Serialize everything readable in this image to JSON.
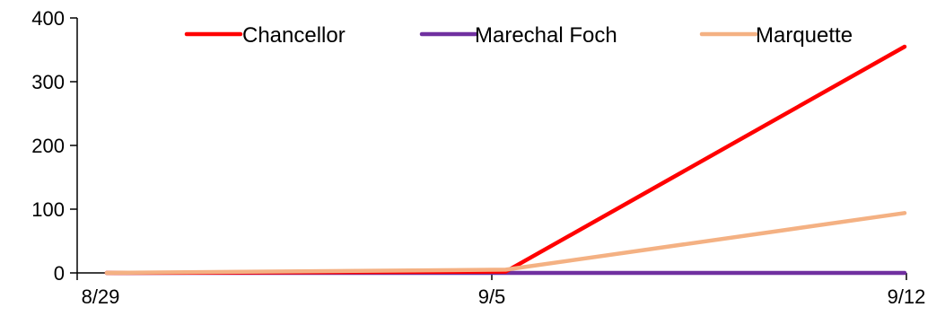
{
  "chart_data": {
    "type": "line",
    "x": [
      "8/29",
      "9/5",
      "9/12"
    ],
    "ylim": [
      0,
      400
    ],
    "yticks": [
      0,
      100,
      200,
      300,
      400
    ],
    "grid": false,
    "legend": "top",
    "series": [
      {
        "name": "Chancellor",
        "color": "#ff0000",
        "values": [
          0,
          2,
          355
        ]
      },
      {
        "name": "Marechal Foch",
        "color": "#7030a0",
        "values": [
          0,
          0,
          0
        ]
      },
      {
        "name": "Marquette",
        "color": "#f4b183",
        "values": [
          0,
          5,
          94
        ]
      }
    ]
  }
}
